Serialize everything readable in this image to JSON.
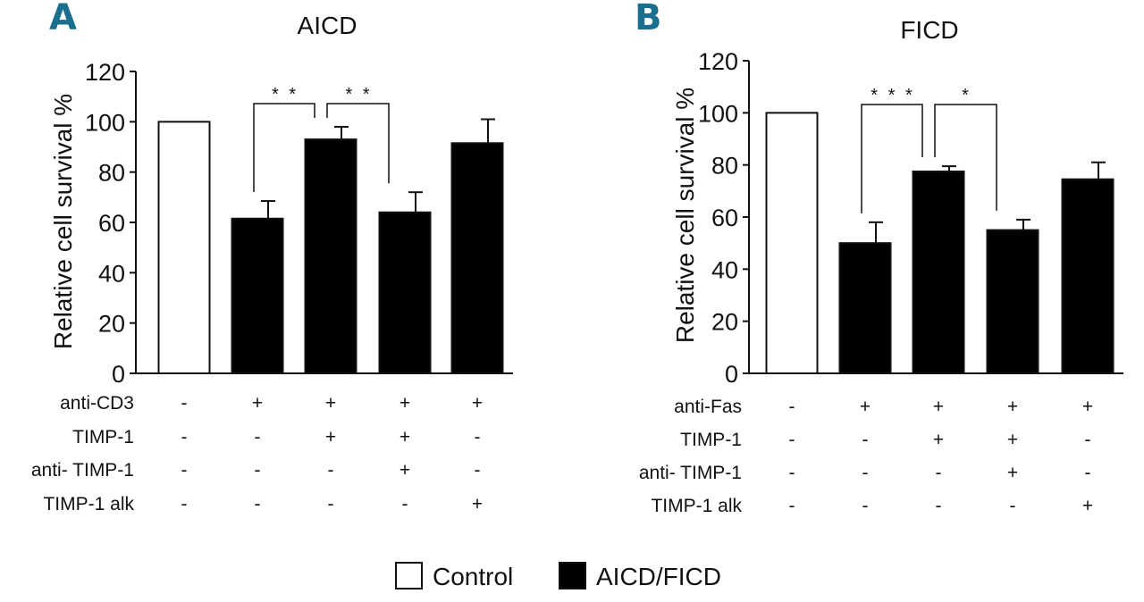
{
  "chart_data": [
    {
      "type": "bar",
      "panel_letter": "A",
      "title": "AICD",
      "ylabel": "Relative cell survival %",
      "ylim": [
        0,
        120
      ],
      "yticks": [
        0,
        20,
        40,
        60,
        80,
        100,
        120
      ],
      "values": [
        100,
        61.5,
        93,
        64,
        91.5
      ],
      "errors": [
        0,
        7,
        5,
        8,
        9.5
      ],
      "fills": [
        "control",
        "aicd",
        "aicd",
        "aicd",
        "aicd"
      ],
      "significance": [
        {
          "from": 1,
          "to": 2,
          "label": "* *"
        },
        {
          "from": 2,
          "to": 3,
          "label": "* *"
        }
      ],
      "condition_rows": [
        {
          "label": "anti-CD3",
          "cells": [
            "-",
            "+",
            "+",
            "+",
            "+"
          ]
        },
        {
          "label": "TIMP-1",
          "cells": [
            "-",
            "-",
            "+",
            "+",
            "-"
          ]
        },
        {
          "label": "anti- TIMP-1",
          "cells": [
            "-",
            "-",
            "-",
            "+",
            "-"
          ]
        },
        {
          "label": "TIMP-1 alk",
          "cells": [
            "-",
            "-",
            "-",
            "-",
            "+"
          ]
        }
      ]
    },
    {
      "type": "bar",
      "panel_letter": "B",
      "title": "FICD",
      "ylabel": "Relative cell survival %",
      "ylim": [
        0,
        120
      ],
      "yticks": [
        0,
        20,
        40,
        60,
        80,
        100,
        120
      ],
      "values": [
        100,
        50,
        77.5,
        55,
        74.5
      ],
      "errors": [
        0,
        8,
        2,
        4,
        6.5
      ],
      "fills": [
        "control",
        "aicd",
        "aicd",
        "aicd",
        "aicd"
      ],
      "significance": [
        {
          "from": 1,
          "to": 2,
          "label": "* * *"
        },
        {
          "from": 2,
          "to": 3,
          "label": "*"
        }
      ],
      "condition_rows": [
        {
          "label": "anti-Fas",
          "cells": [
            "-",
            "+",
            "+",
            "+",
            "+"
          ]
        },
        {
          "label": "TIMP-1",
          "cells": [
            "-",
            "-",
            "+",
            "+",
            "-"
          ]
        },
        {
          "label": "anti- TIMP-1",
          "cells": [
            "-",
            "-",
            "-",
            "+",
            "-"
          ]
        },
        {
          "label": "TIMP-1 alk",
          "cells": [
            "-",
            "-",
            "-",
            "-",
            "+"
          ]
        }
      ]
    }
  ],
  "legend": {
    "items": [
      {
        "key": "control",
        "label": "Control"
      },
      {
        "key": "aicd",
        "label": "AICD/FICD"
      }
    ]
  },
  "colors": {
    "control": "#ffffff",
    "aicd": "#000000",
    "letter": "#1a6f8f"
  }
}
